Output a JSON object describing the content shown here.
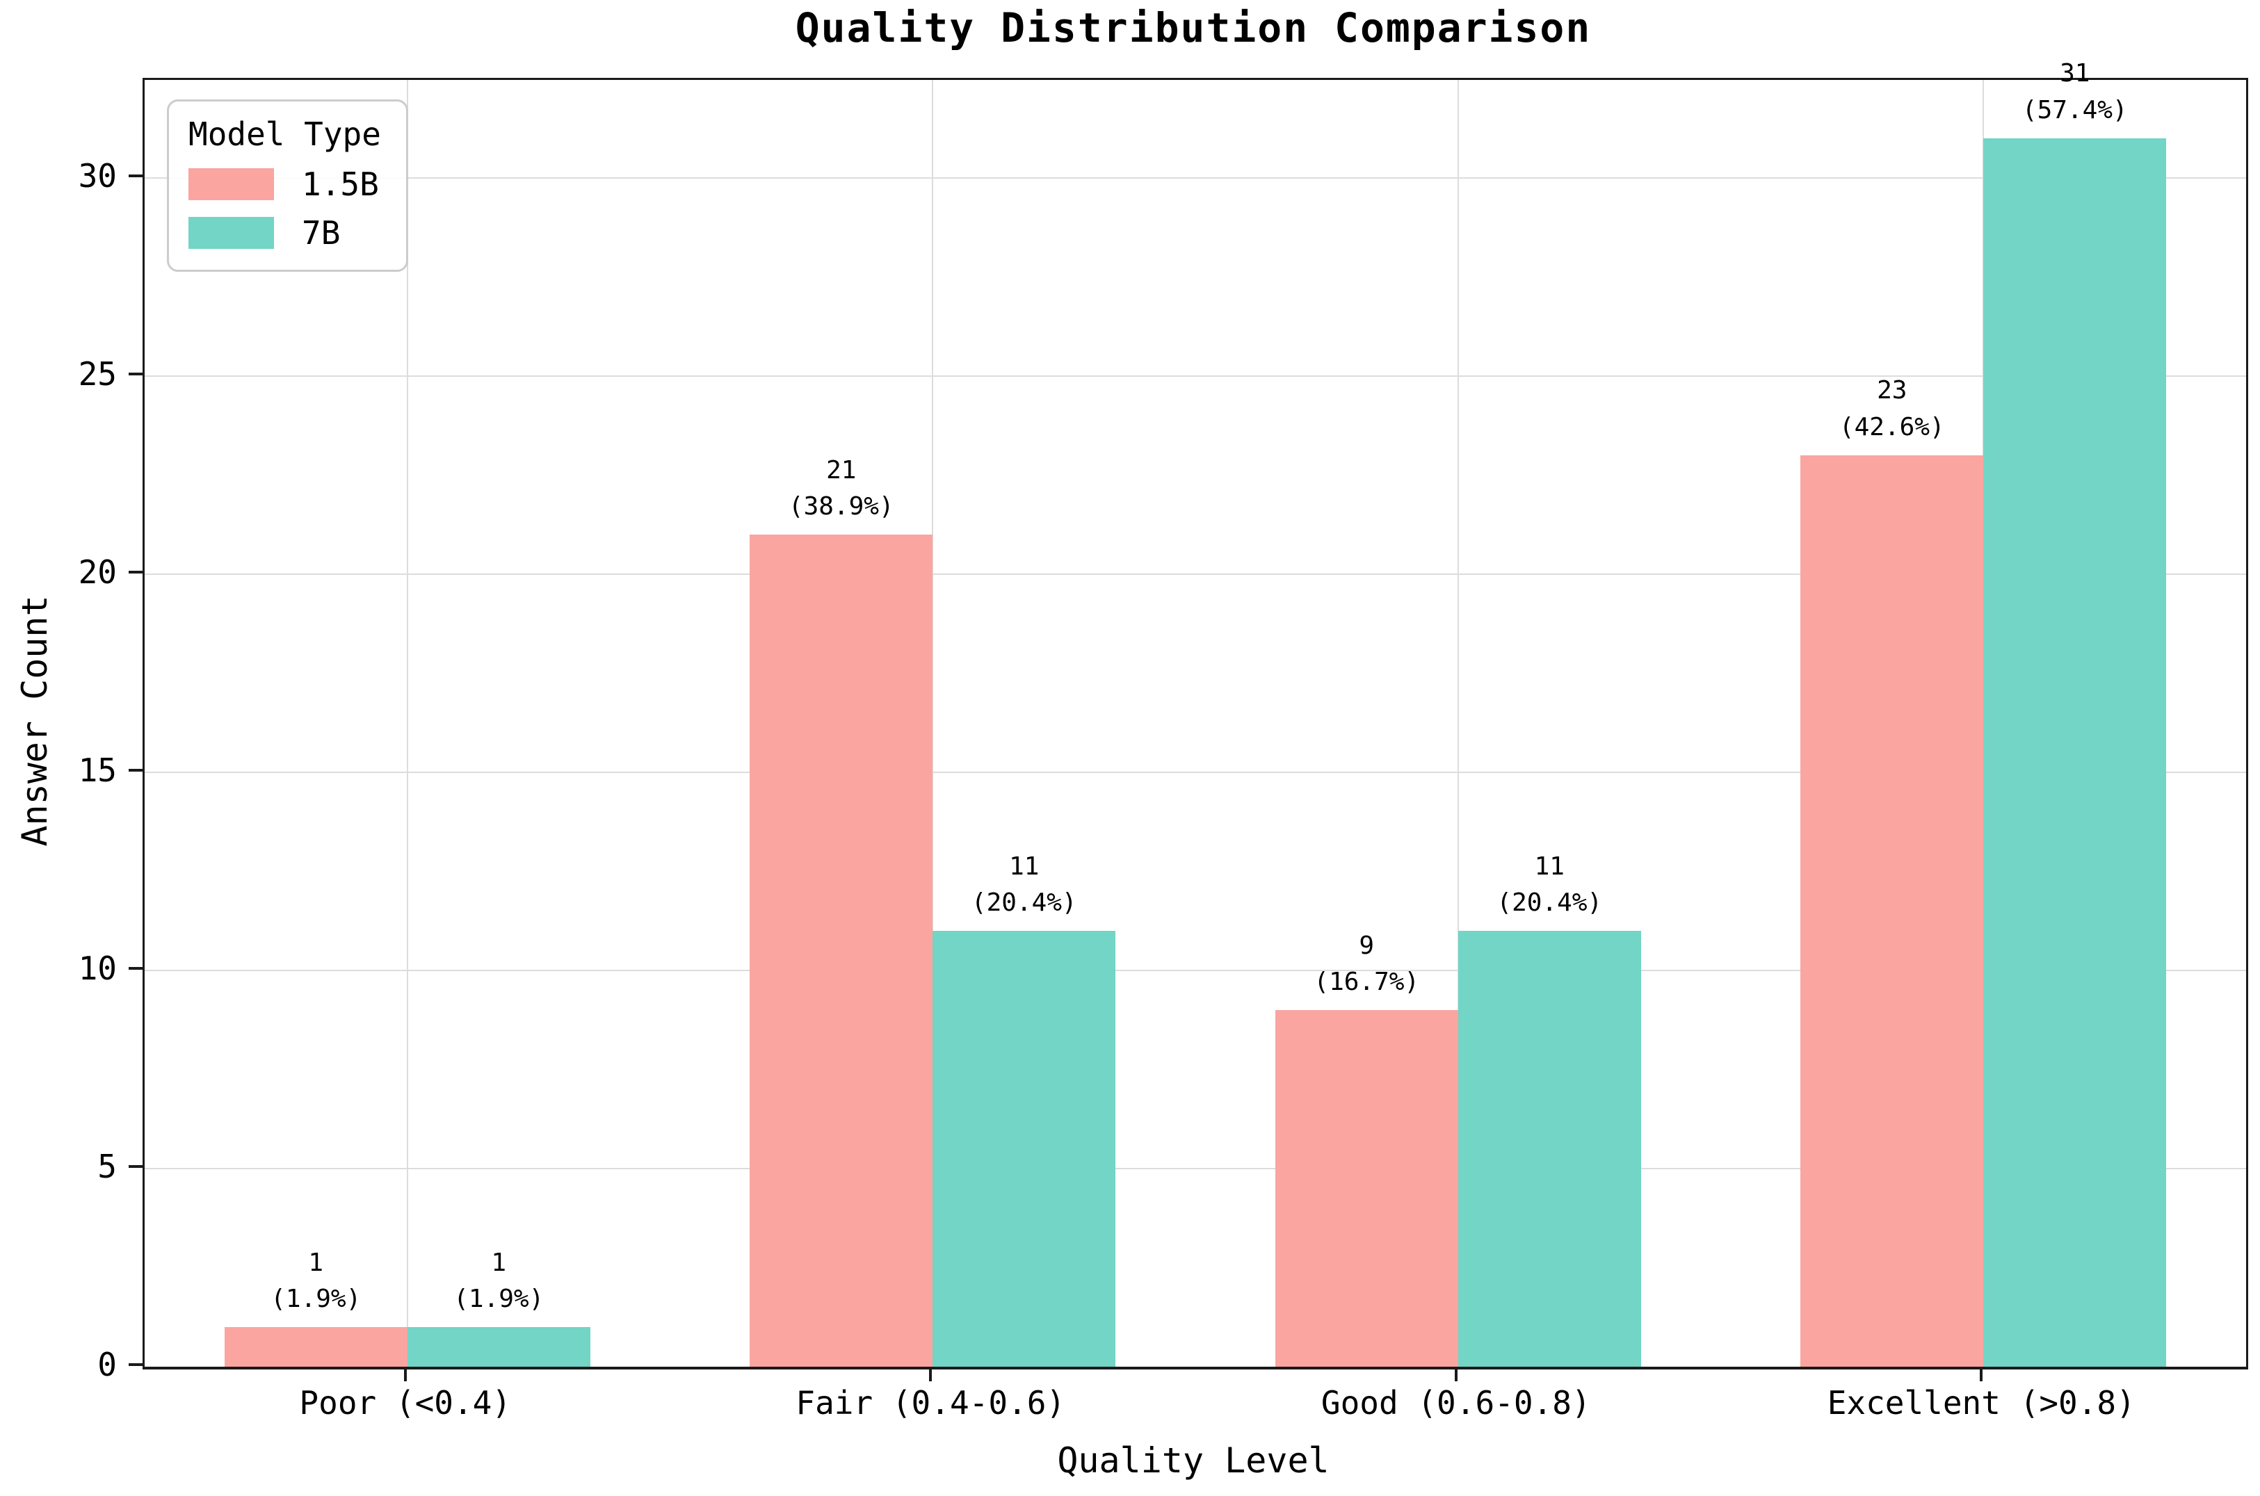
{
  "chart_data": {
    "type": "bar",
    "title": "Quality Distribution Comparison",
    "xlabel": "Quality Level",
    "ylabel": "Answer Count",
    "categories": [
      "Poor (<0.4)",
      "Fair (0.4-0.6)",
      "Good (0.6-0.8)",
      "Excellent (>0.8)"
    ],
    "series": [
      {
        "name": "1.5B",
        "color": "#FAA5A0",
        "values": [
          1,
          21,
          9,
          23
        ],
        "pct_labels": [
          "(1.9%)",
          "(38.9%)",
          "(16.7%)",
          "(42.6%)"
        ]
      },
      {
        "name": "7B",
        "color": "#72D5C6",
        "values": [
          1,
          11,
          11,
          31
        ],
        "pct_labels": [
          "(1.9%)",
          "(20.4%)",
          "(20.4%)",
          "(57.4%)"
        ]
      }
    ],
    "legend": {
      "title": "Model Type",
      "position": "upper left"
    },
    "yticks": [
      0,
      5,
      10,
      15,
      20,
      25,
      30
    ],
    "ylim": [
      0,
      32.47
    ],
    "grid": true,
    "grid_color": "#dcdcdc",
    "spine_color": "#1a1a1a"
  }
}
